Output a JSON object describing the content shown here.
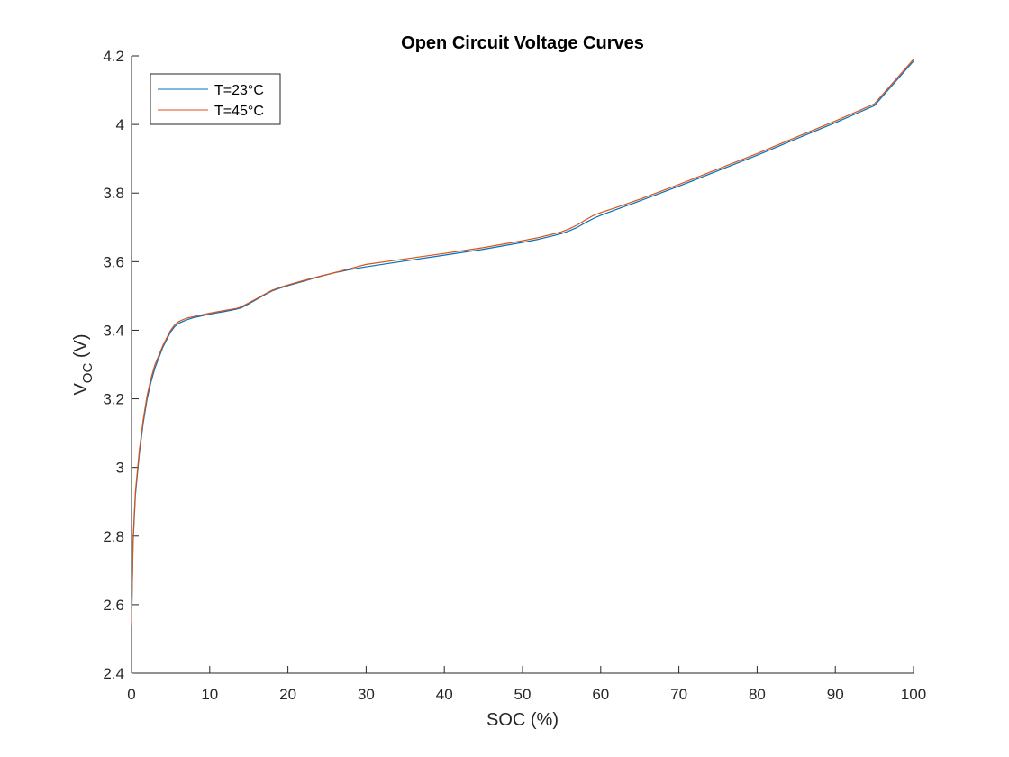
{
  "chart_data": {
    "type": "line",
    "title": "Open Circuit Voltage Curves",
    "xlabel": "SOC (%)",
    "ylabel": "V",
    "ylabel_subscript": "OC",
    "ylabel_suffix": " (V)",
    "xlim": [
      0,
      100
    ],
    "ylim": [
      2.4,
      4.2
    ],
    "xticks": [
      0,
      10,
      20,
      30,
      40,
      50,
      60,
      70,
      80,
      90,
      100
    ],
    "yticks": [
      2.4,
      2.6,
      2.8,
      3,
      3.2,
      3.4,
      3.6,
      3.8,
      4,
      4.2
    ],
    "ytick_labels": [
      "2.4",
      "2.6",
      "2.8",
      "3",
      "3.2",
      "3.4",
      "3.6",
      "3.8",
      "4",
      "4.2"
    ],
    "grid": false,
    "legend_position": "top-left",
    "series": [
      {
        "name": "T=23°C",
        "color": "#0072BD",
        "x": [
          0,
          0.2,
          0.5,
          1,
          1.5,
          2,
          2.5,
          3,
          4,
          5,
          5.5,
          6,
          7,
          8,
          10,
          12,
          13.5,
          14,
          15,
          16,
          17,
          18,
          19,
          20,
          22,
          24,
          26,
          28,
          30,
          35,
          40,
          45,
          50,
          52,
          54,
          55,
          56,
          57,
          58,
          59,
          60,
          62,
          65,
          70,
          75,
          80,
          85,
          90,
          95,
          100
        ],
        "y": [
          2.54,
          2.78,
          2.92,
          3.04,
          3.13,
          3.2,
          3.25,
          3.29,
          3.35,
          3.395,
          3.41,
          3.42,
          3.43,
          3.437,
          3.447,
          3.455,
          3.462,
          3.465,
          3.477,
          3.49,
          3.503,
          3.515,
          3.523,
          3.53,
          3.543,
          3.556,
          3.568,
          3.577,
          3.585,
          3.602,
          3.619,
          3.636,
          3.656,
          3.665,
          3.676,
          3.682,
          3.69,
          3.7,
          3.713,
          3.725,
          3.735,
          3.752,
          3.777,
          3.82,
          3.865,
          3.91,
          3.958,
          4.005,
          4.055,
          4.185
        ]
      },
      {
        "name": "T=45°C",
        "color": "#D95319",
        "x": [
          0,
          0.2,
          0.5,
          1,
          1.5,
          2,
          2.5,
          3,
          4,
          5,
          5.5,
          6,
          7,
          8,
          10,
          12,
          13.5,
          14,
          15,
          16,
          17,
          18,
          19,
          20,
          22,
          24,
          26,
          28,
          30,
          35,
          40,
          45,
          50,
          52,
          54,
          55,
          56,
          57,
          58,
          59,
          60,
          62,
          65,
          70,
          75,
          80,
          85,
          90,
          95,
          100
        ],
        "y": [
          2.54,
          2.79,
          2.93,
          3.05,
          3.14,
          3.21,
          3.26,
          3.3,
          3.355,
          3.4,
          3.415,
          3.425,
          3.435,
          3.44,
          3.45,
          3.458,
          3.464,
          3.468,
          3.48,
          3.492,
          3.505,
          3.517,
          3.525,
          3.532,
          3.545,
          3.557,
          3.568,
          3.58,
          3.592,
          3.608,
          3.624,
          3.641,
          3.661,
          3.67,
          3.681,
          3.687,
          3.696,
          3.707,
          3.721,
          3.734,
          3.743,
          3.758,
          3.782,
          3.825,
          3.87,
          3.915,
          3.963,
          4.01,
          4.06,
          4.19
        ]
      }
    ]
  }
}
